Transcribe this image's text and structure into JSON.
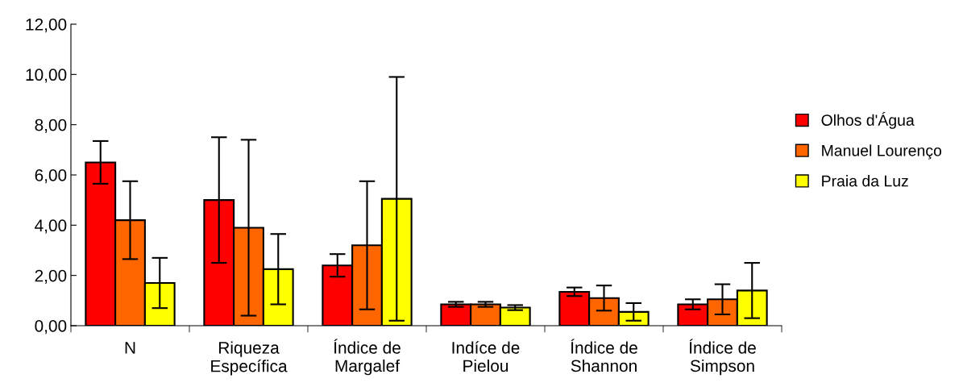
{
  "chart_data": {
    "type": "bar",
    "categories": [
      "N",
      "Riqueza\nEspecífica",
      "Índice de\nMargalef",
      "Indíce de\nPielou",
      "Índice de\nShannon",
      "Índice de\nSimpson"
    ],
    "series": [
      {
        "name": "Olhos d'Água",
        "color": "#ff0000",
        "values": [
          6.5,
          5.0,
          2.4,
          0.85,
          1.35,
          0.85
        ],
        "errors": [
          0.85,
          2.5,
          0.45,
          0.1,
          0.17,
          0.2
        ]
      },
      {
        "name": "Manuel Lourenço",
        "color": "#ff6600",
        "values": [
          4.2,
          3.9,
          3.2,
          0.85,
          1.1,
          1.05
        ],
        "errors": [
          1.55,
          3.5,
          2.55,
          0.1,
          0.5,
          0.6
        ]
      },
      {
        "name": "Praia da Luz",
        "color": "#ffff00",
        "values": [
          1.7,
          2.25,
          5.05,
          0.72,
          0.55,
          1.4
        ],
        "errors": [
          1.0,
          1.4,
          4.85,
          0.1,
          0.35,
          1.1
        ]
      }
    ],
    "ylim": [
      0,
      12
    ],
    "yticks": [
      {
        "value": 0,
        "label": "0,00"
      },
      {
        "value": 2,
        "label": "2,00"
      },
      {
        "value": 4,
        "label": "4,00"
      },
      {
        "value": 6,
        "label": "6,00"
      },
      {
        "value": 8,
        "label": "8,00"
      },
      {
        "value": 10,
        "label": "10,00"
      },
      {
        "value": 12,
        "label": "12,00"
      }
    ],
    "grid": false,
    "legend": "right"
  }
}
